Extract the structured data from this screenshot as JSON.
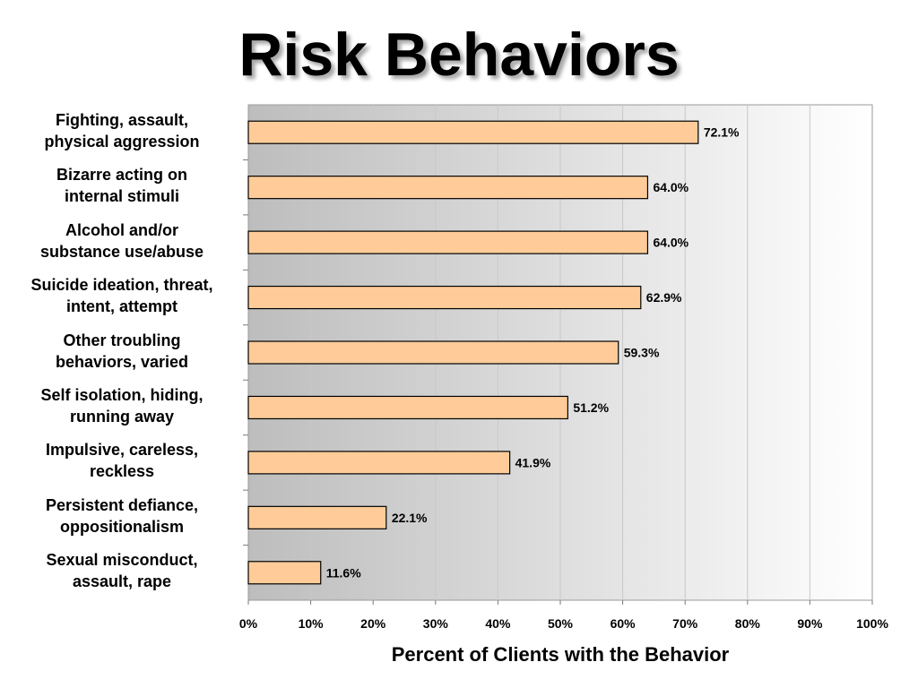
{
  "title": "Risk Behaviors",
  "chart_data": {
    "type": "bar",
    "orientation": "horizontal",
    "categories": [
      [
        "Fighting, assault,",
        "physical aggression"
      ],
      [
        "Bizarre acting on",
        "internal stimuli"
      ],
      [
        "Alcohol and/or",
        "substance use/abuse"
      ],
      [
        "Suicide ideation, threat,",
        "intent, attempt"
      ],
      [
        "Other troubling",
        "behaviors, varied"
      ],
      [
        "Self isolation, hiding,",
        "running away"
      ],
      [
        "Impulsive, careless,",
        "reckless"
      ],
      [
        "Persistent defiance,",
        "oppositionalism"
      ],
      [
        "Sexual misconduct,",
        "assault, rape"
      ]
    ],
    "values": [
      72.1,
      64.0,
      64.0,
      62.9,
      59.3,
      51.2,
      41.9,
      22.1,
      11.6
    ],
    "data_labels": [
      "72.1%",
      "64.0%",
      "64.0%",
      "62.9%",
      "59.3%",
      "51.2%",
      "41.9%",
      "22.1%",
      "11.6%"
    ],
    "xlabel": "Percent of Clients with the Behavior",
    "ylabel": "",
    "xlim": [
      0,
      100
    ],
    "xticks": [
      "0%",
      "10%",
      "20%",
      "30%",
      "40%",
      "50%",
      "60%",
      "70%",
      "80%",
      "90%",
      "100%"
    ],
    "grid": true,
    "legend": "none",
    "colors": {
      "bar_fill": "#ffcc99",
      "bar_stroke": "#000000",
      "plot_gradient_left": "#bdbdbd",
      "plot_gradient_right": "#ffffff",
      "grid": "#c8c8c8"
    }
  }
}
